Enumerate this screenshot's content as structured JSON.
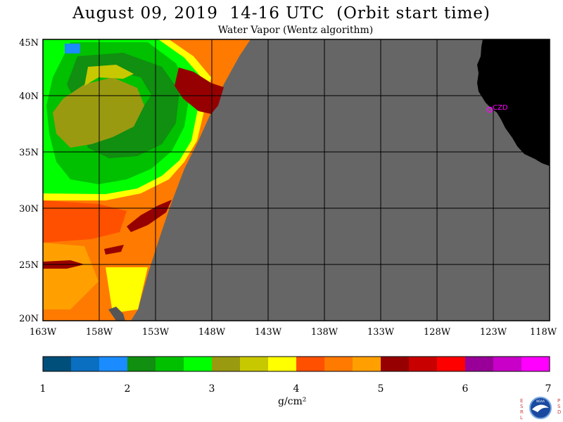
{
  "header": {
    "title": "August 09, 2019  14-16 UTC  (Orbit start time)",
    "subtitle": "Water Vapor (Wentz algorithm)"
  },
  "map": {
    "lat_labels": [
      "45N",
      "40N",
      "35N",
      "30N",
      "25N",
      "20N"
    ],
    "lon_labels": [
      "163W",
      "158W",
      "153W",
      "148W",
      "143W",
      "138W",
      "133W",
      "128W",
      "123W",
      "118W"
    ],
    "station_label": "CZD",
    "colors": {
      "no_data": "#666666",
      "land": "#000000",
      "grid": "#000000",
      "station": "#ff00ff"
    }
  },
  "colorbar": {
    "ticks": [
      "1",
      "2",
      "3",
      "4",
      "5",
      "6",
      "7"
    ],
    "unit": "g/cm²",
    "colors": [
      "#004f7a",
      "#0a6fc0",
      "#1a8cff",
      "#108f10",
      "#00c000",
      "#00ff00",
      "#9a9a10",
      "#c8c800",
      "#ffff00",
      "#ff5000",
      "#ff7a00",
      "#ffa000",
      "#960000",
      "#c80000",
      "#ff0000",
      "#980098",
      "#c800c8",
      "#ff00ff"
    ]
  },
  "logo": {
    "left_letters": "ESRL",
    "right_letters": "PSD",
    "center_text": "NOAA"
  }
}
